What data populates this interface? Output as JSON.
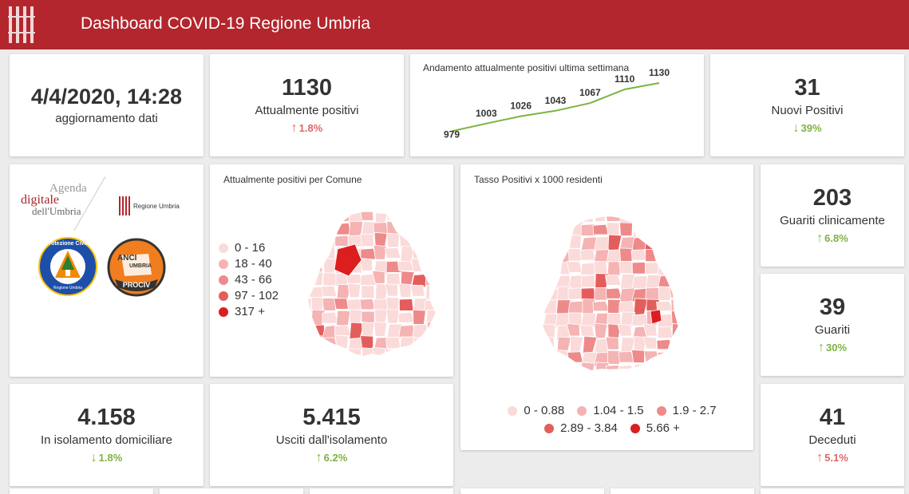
{
  "header": {
    "title": "Dashboard COVID-19 Regione Umbria"
  },
  "update": {
    "datetime": "4/4/2020, 14:28",
    "label": "aggiornamento dati"
  },
  "positivi": {
    "value": "1130",
    "label": "Attualmente positivi",
    "change": "1.8%",
    "arrow": "↑"
  },
  "trend": {
    "title": "Andamento attualmente positivi ultima settimana",
    "chart_data": {
      "type": "line",
      "title": "Andamento attualmente positivi ultima settimana",
      "values": [
        979,
        1003,
        1026,
        1043,
        1067,
        1110,
        1130
      ],
      "data_labels": [
        "979",
        "1003",
        "1026",
        "1043",
        "1067",
        "1110",
        "1130"
      ],
      "ylim": [
        950,
        1150
      ],
      "grid": false,
      "color": "#7cb342"
    }
  },
  "nuovi": {
    "value": "31",
    "label": "Nuovi Positivi",
    "change": "39%",
    "arrow": "↓"
  },
  "logos": {
    "agenda_line1": "Agenda",
    "agenda_line2": "digitale",
    "agenda_line3": "dell'Umbria",
    "regione": "Regione Umbria",
    "protezione": "Protezione Civile",
    "protezione_sub": "Regione Umbria",
    "anci": "ANCI",
    "anci_umbria": "UMBRIA",
    "prociv": "PROCIV"
  },
  "map1": {
    "title": "Attualmente positivi per Comune",
    "legend": [
      {
        "label": "0 - 16",
        "color": "#fbdada"
      },
      {
        "label": "18 - 40",
        "color": "#f5b3b3"
      },
      {
        "label": "43 - 66",
        "color": "#ee8a8a"
      },
      {
        "label": "97 - 102",
        "color": "#e45d5d"
      },
      {
        "label": "317 +",
        "color": "#dc1e1e"
      }
    ]
  },
  "map2": {
    "title": "Tasso Positivi x 1000 residenti",
    "legend": [
      {
        "label": "0 - 0.88",
        "color": "#fbdada"
      },
      {
        "label": "1.04 - 1.5",
        "color": "#f5b3b3"
      },
      {
        "label": "1.9 - 2.7",
        "color": "#ee8a8a"
      },
      {
        "label": "2.89 - 3.84",
        "color": "#e45d5d"
      },
      {
        "label": "5.66 +",
        "color": "#dc1e1e"
      }
    ]
  },
  "guariti_clin": {
    "value": "203",
    "label": "Guariti clinicamente",
    "change": "6.8%",
    "arrow": "↑"
  },
  "guariti": {
    "value": "39",
    "label": "Guariti",
    "change": "30%",
    "arrow": "↑"
  },
  "isolamento": {
    "value": "4.158",
    "label": "In isolamento domiciliare",
    "change": "1.8%",
    "arrow": "↓"
  },
  "usciti": {
    "value": "5.415",
    "label": "Usciti dall'isolamento",
    "change": "6.2%",
    "arrow": "↑"
  },
  "deceduti": {
    "value": "41",
    "label": "Deceduti",
    "change": "5.1%",
    "arrow": "↑"
  }
}
